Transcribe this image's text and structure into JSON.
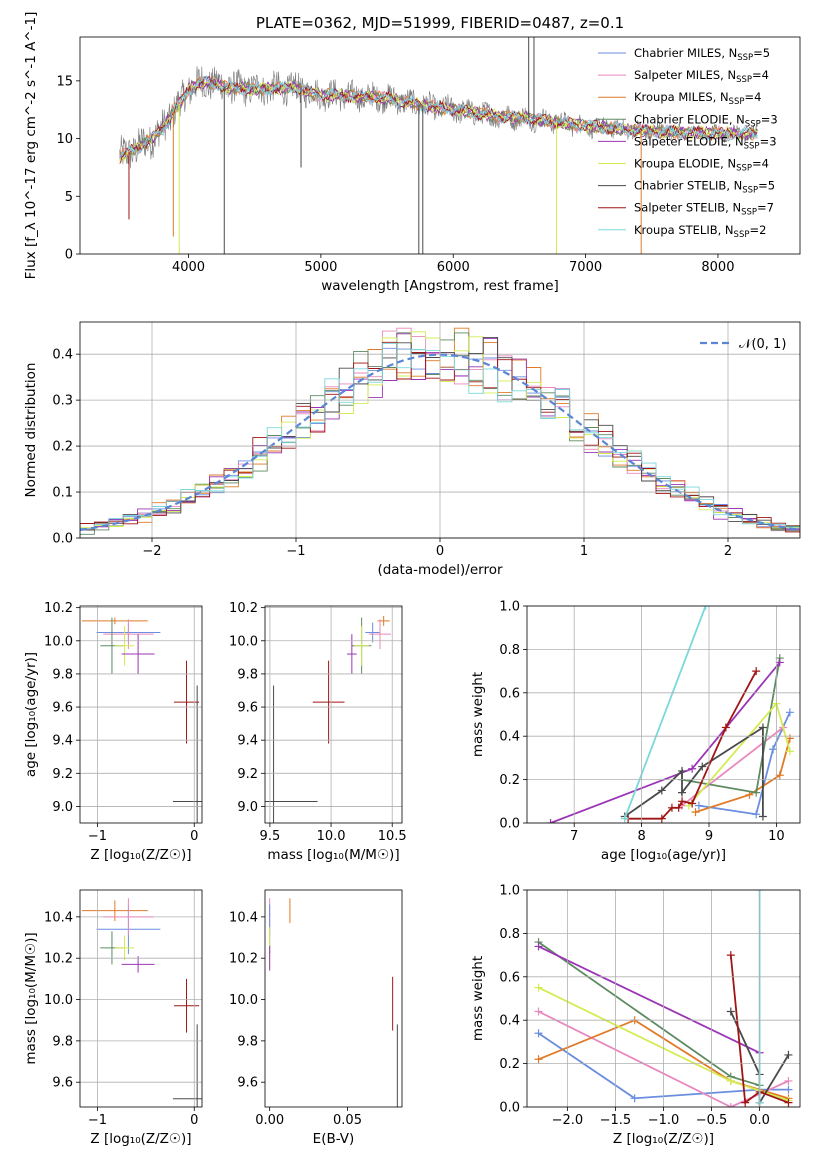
{
  "colors": {
    "chabrier_miles": "#6a8ee0",
    "salpeter_miles": "#e888bf",
    "kroupa_miles": "#e07a28",
    "chabrier_elodie": "#5e8a62",
    "salpeter_elodie": "#9b35b5",
    "kroupa_elodie": "#d4ec52",
    "chabrier_stelib": "#4a4a4a",
    "salpeter_stelib": "#a01515",
    "kroupa_stelib": "#7ad8dc",
    "normal": "#5b86d4"
  },
  "chart_data": [
    {
      "id": "spectrum",
      "type": "line",
      "title": "PLATE=0362, MJD=51999, FIBERID=0487, z=0.1",
      "xlabel": "wavelength [Angstrom, rest frame]",
      "ylabel": "Flux [f_λ 10^-17 erg cm^-2 s^-1 A^-1]",
      "xlim": [
        3180,
        8620
      ],
      "ylim": [
        0,
        18.8
      ],
      "xticks": [
        4000,
        5000,
        6000,
        7000,
        8000
      ],
      "yticks": [
        0,
        5,
        10,
        15
      ],
      "grid": false,
      "legend_position": "top-right",
      "legend": [
        {
          "key": "chabrier_miles",
          "label": "Chabrier MILES, N",
          "sub": "SSP",
          "tail": "=5"
        },
        {
          "key": "salpeter_miles",
          "label": "Salpeter MILES, N",
          "sub": "SSP",
          "tail": "=4"
        },
        {
          "key": "kroupa_miles",
          "label": "Kroupa MILES, N",
          "sub": "SSP",
          "tail": "=4"
        },
        {
          "key": "chabrier_elodie",
          "label": "Chabrier ELODIE, N",
          "sub": "SSP",
          "tail": "=3"
        },
        {
          "key": "salpeter_elodie",
          "label": "Salpeter ELODIE, N",
          "sub": "SSP",
          "tail": "=3"
        },
        {
          "key": "kroupa_elodie",
          "label": "Kroupa ELODIE, N",
          "sub": "SSP",
          "tail": "=4"
        },
        {
          "key": "chabrier_stelib",
          "label": "Chabrier STELIB, N",
          "sub": "SSP",
          "tail": "=5"
        },
        {
          "key": "salpeter_stelib",
          "label": "Salpeter STELIB, N",
          "sub": "SSP",
          "tail": "=7"
        },
        {
          "key": "kroupa_stelib",
          "label": "Kroupa STELIB, N",
          "sub": "SSP",
          "tail": "=2"
        }
      ],
      "continuum": [
        [
          3480,
          8.4
        ],
        [
          3600,
          9.1
        ],
        [
          3700,
          9.8
        ],
        [
          3800,
          10.8
        ],
        [
          3900,
          12.6
        ],
        [
          3950,
          13.3
        ],
        [
          4000,
          14.3
        ],
        [
          4100,
          14.9
        ],
        [
          4200,
          14.8
        ],
        [
          4300,
          14.4
        ],
        [
          4500,
          14.3
        ],
        [
          4800,
          14.4
        ],
        [
          5000,
          13.8
        ],
        [
          5200,
          13.7
        ],
        [
          5500,
          13.5
        ],
        [
          5800,
          12.8
        ],
        [
          6000,
          12.5
        ],
        [
          6300,
          12.0
        ],
        [
          6600,
          11.7
        ],
        [
          7000,
          11.1
        ],
        [
          7400,
          10.7
        ],
        [
          7800,
          10.5
        ],
        [
          8300,
          10.4
        ]
      ],
      "observed": {
        "key": "chabrier_stelib",
        "x_range": [
          3480,
          8300
        ],
        "noise_blue": 1.6,
        "noise_red": 0.5
      },
      "sharp_dips": [
        [
          3550,
          3.0,
          "salpeter_stelib"
        ],
        [
          3885,
          1.5,
          "kroupa_miles"
        ],
        [
          3930,
          0.0,
          "kroupa_elodie"
        ],
        [
          4270,
          0.0,
          "chabrier_stelib"
        ],
        [
          4850,
          7.5,
          "chabrier_stelib"
        ],
        [
          5740,
          0.0,
          "chabrier_stelib"
        ],
        [
          5770,
          0.0,
          "chabrier_stelib"
        ],
        [
          6780,
          0.0,
          "kroupa_elodie"
        ],
        [
          7420,
          0.0,
          "kroupa_miles"
        ]
      ],
      "sharp_spikes": [
        [
          6570,
          18.8,
          "chabrier_stelib"
        ],
        [
          6610,
          18.8,
          "chabrier_stelib"
        ]
      ]
    },
    {
      "id": "residuals",
      "type": "histogram",
      "xlabel": "(data-model)/error",
      "ylabel": "Normed distribution",
      "xlim": [
        -2.5,
        2.5
      ],
      "ylim": [
        0,
        0.47
      ],
      "xticks": [
        -2,
        -1,
        0,
        1,
        2
      ],
      "yticks": [
        0.0,
        0.1,
        0.2,
        0.3,
        0.4
      ],
      "grid": true,
      "legend_position": "top-right",
      "legend": [
        {
          "key": "normal",
          "label": "𝒩(0, 1)",
          "style": "dashed"
        }
      ],
      "bin_width": 0.1,
      "series_keys": [
        "chabrier_miles",
        "salpeter_miles",
        "kroupa_miles",
        "chabrier_elodie",
        "salpeter_elodie",
        "kroupa_elodie",
        "chabrier_stelib",
        "salpeter_stelib",
        "kroupa_stelib"
      ]
    },
    {
      "id": "age_vs_z",
      "type": "errorbar",
      "xlabel": "Z [log₁₀(Z/Z☉)]",
      "ylabel": "age  [log₁₀(age/yr)]",
      "xlim": [
        -1.18,
        0.08
      ],
      "ylim": [
        8.9,
        10.21
      ],
      "xticks": [
        -1,
        0
      ],
      "yticks": [
        9.0,
        9.2,
        9.4,
        9.6,
        9.8,
        10.0,
        10.2
      ],
      "grid": true,
      "points": [
        {
          "key": "kroupa_miles",
          "x": -0.82,
          "y": 10.12,
          "xerr": 0.34,
          "yerr": 0.02
        },
        {
          "key": "chabrier_miles",
          "x": -0.68,
          "y": 10.05,
          "xerr": 0.33,
          "yerr": 0.06
        },
        {
          "key": "salpeter_miles",
          "x": -0.68,
          "y": 10.04,
          "xerr": 0.26,
          "yerr": 0.09
        },
        {
          "key": "chabrier_elodie",
          "x": -0.85,
          "y": 9.97,
          "xerr": 0.12,
          "yerr": 0.17
        },
        {
          "key": "kroupa_elodie",
          "x": -0.72,
          "y": 9.97,
          "xerr": 0.1,
          "yerr": 0.12
        },
        {
          "key": "salpeter_elodie",
          "x": -0.58,
          "y": 9.92,
          "xerr": 0.17,
          "yerr": 0.12
        },
        {
          "key": "salpeter_stelib",
          "x": -0.08,
          "y": 9.63,
          "xerr": 0.13,
          "yerr": 0.25
        },
        {
          "key": "chabrier_stelib",
          "x": 0.03,
          "y": 9.03,
          "xerr": 0.25,
          "yerr": 0.7
        }
      ]
    },
    {
      "id": "age_vs_mass",
      "type": "errorbar",
      "xlabel": "mass [log₁₀(M/M☉)]",
      "ylabel": "",
      "xlim": [
        9.46,
        10.58
      ],
      "ylim": [
        8.9,
        10.21
      ],
      "xticks": [
        9.5,
        10.0,
        10.5
      ],
      "yticks": [
        9.0,
        9.2,
        9.4,
        9.6,
        9.8,
        10.0,
        10.2
      ],
      "grid": true,
      "points": [
        {
          "key": "kroupa_miles",
          "x": 10.43,
          "y": 10.12,
          "xerr": 0.05,
          "yerr": 0.03
        },
        {
          "key": "chabrier_miles",
          "x": 10.34,
          "y": 10.05,
          "xerr": 0.06,
          "yerr": 0.06
        },
        {
          "key": "salpeter_miles",
          "x": 10.4,
          "y": 10.04,
          "xerr": 0.09,
          "yerr": 0.09
        },
        {
          "key": "chabrier_elodie",
          "x": 10.25,
          "y": 9.97,
          "xerr": 0.08,
          "yerr": 0.17
        },
        {
          "key": "kroupa_elodie",
          "x": 10.25,
          "y": 9.97,
          "xerr": 0.06,
          "yerr": 0.12
        },
        {
          "key": "salpeter_elodie",
          "x": 10.17,
          "y": 9.92,
          "xerr": 0.04,
          "yerr": 0.12
        },
        {
          "key": "salpeter_stelib",
          "x": 9.98,
          "y": 9.63,
          "xerr": 0.13,
          "yerr": 0.25
        },
        {
          "key": "chabrier_stelib",
          "x": 9.53,
          "y": 9.03,
          "xerr": 0.36,
          "yerr": 0.7
        }
      ]
    },
    {
      "id": "weight_vs_age",
      "type": "line",
      "xlabel": "age  [log₁₀(age/yr)]",
      "ylabel": "mass weight",
      "xlim": [
        6.3,
        10.35
      ],
      "ylim": [
        0,
        1.0
      ],
      "xticks": [
        7,
        8,
        9,
        10
      ],
      "yticks": [
        0.0,
        0.2,
        0.4,
        0.6,
        0.8,
        1.0
      ],
      "grid": true,
      "series": [
        {
          "key": "chabrier_miles",
          "x": [
            8.85,
            9.7,
            9.95,
            10.2
          ],
          "y": [
            0.08,
            0.04,
            0.34,
            0.51
          ]
        },
        {
          "key": "salpeter_miles",
          "x": [
            8.6,
            10.1
          ],
          "y": [
            0.08,
            0.44
          ]
        },
        {
          "key": "kroupa_miles",
          "x": [
            8.8,
            9.6,
            10.05,
            10.2
          ],
          "y": [
            0.05,
            0.13,
            0.22,
            0.39
          ]
        },
        {
          "key": "chabrier_elodie",
          "x": [
            8.6,
            9.7,
            10.05
          ],
          "y": [
            0.2,
            0.14,
            0.76
          ]
        },
        {
          "key": "salpeter_elodie",
          "x": [
            6.65,
            8.75,
            10.05
          ],
          "y": [
            0.0,
            0.25,
            0.74
          ]
        },
        {
          "key": "kroupa_elodie",
          "x": [
            8.7,
            10.0,
            10.2
          ],
          "y": [
            0.08,
            0.55,
            0.33
          ]
        },
        {
          "key": "chabrier_stelib",
          "x": [
            7.75,
            8.3,
            8.6,
            8.6,
            8.9,
            9.8,
            9.8
          ],
          "y": [
            0.03,
            0.15,
            0.24,
            0.14,
            0.26,
            0.44,
            0.03
          ]
        },
        {
          "key": "salpeter_stelib",
          "x": [
            7.8,
            8.3,
            8.45,
            8.55,
            8.6,
            8.75,
            9.25,
            9.7
          ],
          "y": [
            0.02,
            0.02,
            0.07,
            0.07,
            0.1,
            0.09,
            0.44,
            0.7
          ]
        },
        {
          "key": "kroupa_stelib",
          "x": [
            7.75,
            8.95
          ],
          "y": [
            0.02,
            1.0
          ]
        }
      ]
    },
    {
      "id": "mass_vs_z",
      "type": "errorbar",
      "xlabel": "Z [log₁₀(Z/Z☉)]",
      "ylabel": "mass [log₁₀(M/M☉)]",
      "xlim": [
        -1.18,
        0.08
      ],
      "ylim": [
        9.48,
        10.53
      ],
      "xticks": [
        -1,
        0
      ],
      "yticks": [
        9.6,
        9.8,
        10.0,
        10.2,
        10.4
      ],
      "grid": true,
      "points": [
        {
          "key": "kroupa_miles",
          "x": -0.82,
          "y": 10.43,
          "xerr": 0.34,
          "yerr": 0.05
        },
        {
          "key": "chabrier_miles",
          "x": -0.68,
          "y": 10.34,
          "xerr": 0.33,
          "yerr": 0.12
        },
        {
          "key": "salpeter_miles",
          "x": -0.68,
          "y": 10.4,
          "xerr": 0.26,
          "yerr": 0.09
        },
        {
          "key": "chabrier_elodie",
          "x": -0.85,
          "y": 10.25,
          "xerr": 0.12,
          "yerr": 0.08
        },
        {
          "key": "kroupa_elodie",
          "x": -0.72,
          "y": 10.25,
          "xerr": 0.1,
          "yerr": 0.06
        },
        {
          "key": "salpeter_elodie",
          "x": -0.58,
          "y": 10.17,
          "xerr": 0.17,
          "yerr": 0.04
        },
        {
          "key": "salpeter_stelib",
          "x": -0.08,
          "y": 9.97,
          "xerr": 0.13,
          "yerr": 0.13
        },
        {
          "key": "chabrier_stelib",
          "x": 0.03,
          "y": 9.52,
          "xerr": 0.25,
          "yerr": 0.36
        }
      ]
    },
    {
      "id": "mass_vs_ebv",
      "type": "errorbar",
      "xlabel": "E(B-V)",
      "ylabel": "",
      "xlim": [
        -0.003,
        0.085
      ],
      "ylim": [
        9.48,
        10.53
      ],
      "xticks": [
        0.0,
        0.05
      ],
      "yticks": [
        9.6,
        9.8,
        10.0,
        10.2,
        10.4
      ],
      "grid": false,
      "points": [
        {
          "key": "salpeter_miles",
          "x": 0.0,
          "y": 10.4,
          "xerr": 0,
          "yerr": 0.09
        },
        {
          "key": "chabrier_miles",
          "x": 0.0,
          "y": 10.34,
          "xerr": 0,
          "yerr": 0.12
        },
        {
          "key": "kroupa_elodie",
          "x": 0.0,
          "y": 10.25,
          "xerr": 0,
          "yerr": 0.1
        },
        {
          "key": "salpeter_elodie",
          "x": 0.0,
          "y": 10.2,
          "xerr": 0,
          "yerr": 0.06
        },
        {
          "key": "kroupa_miles",
          "x": 0.013,
          "y": 10.43,
          "xerr": 0,
          "yerr": 0.06
        },
        {
          "key": "salpeter_stelib",
          "x": 0.079,
          "y": 9.98,
          "xerr": 0,
          "yerr": 0.13
        },
        {
          "key": "chabrier_stelib",
          "x": 0.082,
          "y": 9.52,
          "xerr": 0,
          "yerr": 0.36
        }
      ]
    },
    {
      "id": "weight_vs_z",
      "type": "line",
      "xlabel": "Z [log₁₀(Z/Z☉)]",
      "ylabel": "mass weight",
      "xlim": [
        -2.42,
        0.42
      ],
      "ylim": [
        0,
        1.0
      ],
      "xticks": [
        -2.0,
        -1.5,
        -1.0,
        -0.5,
        0.0
      ],
      "yticks": [
        0.0,
        0.2,
        0.4,
        0.6,
        0.8,
        1.0
      ],
      "grid": true,
      "series": [
        {
          "key": "chabrier_miles",
          "x": [
            -2.3,
            -1.3,
            0.0,
            0.3
          ],
          "y": [
            0.34,
            0.04,
            0.08,
            0.08
          ]
        },
        {
          "key": "salpeter_miles",
          "x": [
            -2.3,
            -0.3,
            0.3
          ],
          "y": [
            0.44,
            0.0,
            0.12
          ]
        },
        {
          "key": "kroupa_miles",
          "x": [
            -2.3,
            -1.3,
            -0.3,
            0.3
          ],
          "y": [
            0.22,
            0.4,
            0.12,
            0.04
          ]
        },
        {
          "key": "chabrier_elodie",
          "x": [
            -2.3,
            -0.3,
            0.0
          ],
          "y": [
            0.76,
            0.14,
            0.1
          ]
        },
        {
          "key": "salpeter_elodie",
          "x": [
            -2.3,
            0.0
          ],
          "y": [
            0.74,
            0.25
          ]
        },
        {
          "key": "kroupa_elodie",
          "x": [
            -2.3,
            -0.3,
            0.3
          ],
          "y": [
            0.55,
            0.12,
            0.03
          ]
        },
        {
          "key": "chabrier_stelib",
          "x": [
            -0.3,
            0.0,
            0.0,
            0.3
          ],
          "y": [
            0.44,
            0.15,
            0.02,
            0.24
          ]
        },
        {
          "key": "salpeter_stelib",
          "x": [
            -0.3,
            -0.15,
            0.0,
            0.3
          ],
          "y": [
            0.7,
            0.02,
            0.07,
            0.02
          ]
        },
        {
          "key": "kroupa_stelib",
          "x": [
            0.0,
            0.0
          ],
          "y": [
            0.02,
            1.0
          ]
        }
      ]
    }
  ]
}
